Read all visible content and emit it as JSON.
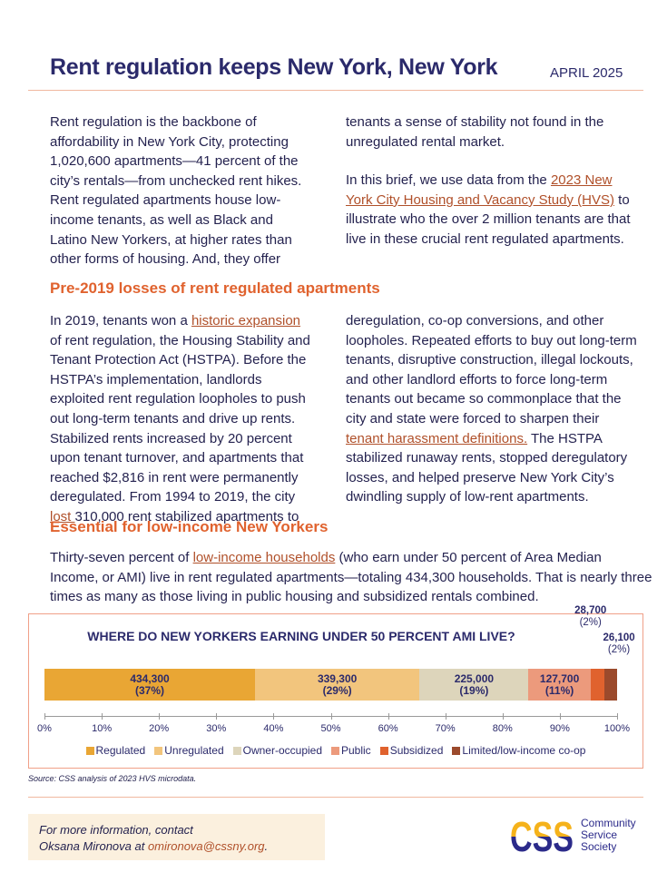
{
  "header": {
    "title": "Rent regulation keeps New York, New York",
    "date": "APRIL 2025"
  },
  "intro": {
    "left": "Rent regulation is the backbone of affordability in New York City, protecting 1,020,600 apartments—41 percent of the city’s rentals—from unchecked rent hikes. Rent regulated apartments house low-income tenants, as well as Black and Latino New Yorkers, at higher rates than other forms of housing. And, they offer",
    "right1": "tenants a sense of stability not found in the unregulated rental market.",
    "right2_pre": "In this brief, we use data from the ",
    "right2_link": "2023 New York City Housing and Vacancy Study (HVS)",
    "right2_post": " to illustrate who the over 2 million tenants are that live in these crucial rent regulated apartments."
  },
  "section1": {
    "heading": "Pre-2019 losses of rent regulated apartments",
    "left_pre": "In 2019, tenants won a ",
    "left_link1": "historic expansion",
    "left_mid": " of rent regulation, the Housing Stability and Tenant Protection Act (HSTPA). Before the HSTPA’s implementation, landlords exploited rent regulation loopholes to push out long-term tenants and drive up rents. Stabilized rents increased by 20 percent upon tenant turnover, and apartments that reached $2,816 in rent were permanently deregulated. From 1994 to 2019, the city ",
    "left_link2": "lost ",
    "left_post": "310,000 rent stabilized apartments to",
    "right_pre": "deregulation, co-op conversions, and other loopholes. Repeated efforts to buy out long-term tenants, disruptive construction, illegal lockouts, and other landlord efforts to force long-term tenants out became so commonplace that the city and state were forced to sharpen their",
    "right_link": " tenant harassment definitions.",
    "right_post": " The HSTPA stabilized runaway rents, stopped deregulatory losses, and helped preserve New York City’s dwindling supply of low-rent apartments."
  },
  "section2": {
    "heading": "Essential for low-income New Yorkers",
    "pre": "Thirty-seven percent of ",
    "link": "low-income households",
    "post": " (who earn under 50 percent of Area Median Income, or AMI) live in rent regulated apartments—totaling 434,300 households. That is nearly three times as many as those living in public housing and subsidized rentals combined."
  },
  "chart_data": {
    "type": "bar",
    "orientation": "horizontal-stacked-100",
    "title": "WHERE DO NEW YORKERS EARNING UNDER 50 PERCENT AMI LIVE?",
    "xlim": [
      0,
      100
    ],
    "ticks": [
      "0%",
      "10%",
      "20%",
      "30%",
      "40%",
      "50%",
      "60%",
      "70%",
      "80%",
      "90%",
      "100%"
    ],
    "legend_position": "bottom",
    "series": [
      {
        "name": "Regulated",
        "value": 434300,
        "label": "434,300",
        "pct": "(37%)",
        "color": "#e9a634"
      },
      {
        "name": "Unregulated",
        "value": 339300,
        "label": "339,300",
        "pct": "(29%)",
        "color": "#f2c57d"
      },
      {
        "name": "Owner-occupied",
        "value": 225000,
        "label": "225,000",
        "pct": "(19%)",
        "color": "#ddd5bb"
      },
      {
        "name": "Public",
        "value": 127700,
        "label": "127,700",
        "pct": "(11%)",
        "color": "#ec9a7c"
      },
      {
        "name": "Subsidized",
        "value": 28700,
        "label": "28,700",
        "pct": "(2%)",
        "color": "#e0622e"
      },
      {
        "name": "Limited/low-income co-op",
        "value": 26100,
        "label": "26,100",
        "pct": "(2%)",
        "color": "#9b4a2c"
      }
    ]
  },
  "source": "Source: CSS analysis of 2023 HVS microdata.",
  "footer": {
    "line1": "For more information, contact",
    "line2_pre": "Oksana Mironova at ",
    "email": "omironova@cssny.org",
    "line2_post": "."
  },
  "logo": {
    "mark": "CSS",
    "name1": "Community",
    "name2": "Service",
    "name3": "Society"
  }
}
